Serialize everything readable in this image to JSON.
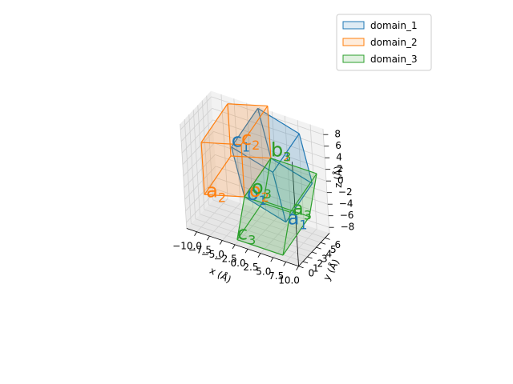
{
  "chart_data": {
    "type": "3d-parallelepipeds",
    "xlabel": "x (Å)",
    "ylabel": "y (Å)",
    "zlabel": "z (Å)",
    "xlim": [
      -12,
      10
    ],
    "ylim": [
      0,
      7
    ],
    "zlim": [
      -9,
      9
    ],
    "xticks": [
      "−10.0",
      "−7.5",
      "−5.0",
      "−2.5",
      "0.0",
      "2.5",
      "5.0",
      "7.5",
      "10.0"
    ],
    "yticks": [
      "0",
      "1",
      "2",
      "3",
      "4",
      "5",
      "6"
    ],
    "zticks": [
      "−8",
      "−6",
      "−4",
      "−2",
      "0",
      "2",
      "4",
      "6",
      "8"
    ],
    "legend_position": "upper-right",
    "series": [
      {
        "name": "domain_1",
        "color": "#1f77b4",
        "fill_alpha": 0.2,
        "origin": [
          0,
          0,
          0
        ],
        "a": [
          8,
          0,
          -2
        ],
        "b": [
          2,
          4,
          4
        ],
        "c": [
          -2,
          0,
          8
        ],
        "labels": {
          "a": "a",
          "b": "b",
          "c": "c",
          "o": "o",
          "subscript": "1"
        }
      },
      {
        "name": "domain_2",
        "color": "#ff7f0e",
        "fill_alpha": 0.2,
        "origin": [
          0,
          0,
          0
        ],
        "a": [
          -8,
          0,
          -2
        ],
        "b": [
          2,
          4,
          4
        ],
        "c": [
          0,
          0,
          9
        ],
        "labels": {
          "a": "a",
          "b": "b",
          "c": "c",
          "o": "o",
          "subscript": "2"
        }
      },
      {
        "name": "domain_3",
        "color": "#2ca02c",
        "fill_alpha": 0.2,
        "origin": [
          0,
          0,
          0
        ],
        "a": [
          9,
          0,
          0
        ],
        "b": [
          2,
          4,
          4
        ],
        "c": [
          -2,
          0,
          -8
        ],
        "labels": {
          "a": "a",
          "b": "b",
          "c": "c",
          "o": "o",
          "subscript": "3"
        }
      }
    ]
  }
}
